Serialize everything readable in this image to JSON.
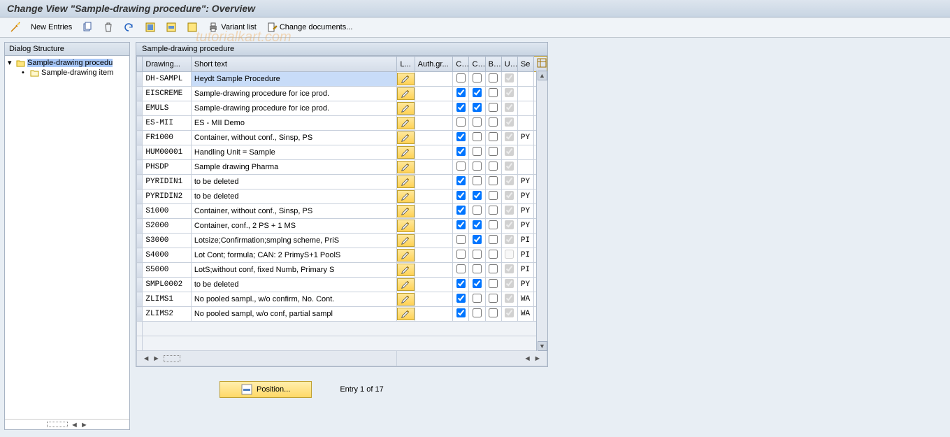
{
  "title": "Change View \"Sample-drawing procedure\": Overview",
  "toolbar": {
    "new_entries": "New Entries",
    "variant_list": "Variant list",
    "change_documents": "Change documents..."
  },
  "watermark": "tutorialkart.com",
  "tree": {
    "header": "Dialog Structure",
    "node1": "Sample-drawing procedu",
    "node2": "Sample-drawing item"
  },
  "grid": {
    "title": "Sample-drawing procedure",
    "headers": {
      "drawing": "Drawing...",
      "short_text": "Short text",
      "l": "L...",
      "authgr": "Auth.gr...",
      "c1": "C...",
      "c2": "C...",
      "bl": "Bl...",
      "u": "U...",
      "se": "Se"
    },
    "rows": [
      {
        "code": "DH-SAMPL",
        "text": "Heydt Sample Procedure",
        "c1": false,
        "c2": false,
        "bl": false,
        "u": true,
        "se": "",
        "sel": true
      },
      {
        "code": "EISCREME",
        "text": "Sample-drawing procedure for ice prod.",
        "c1": true,
        "c2": true,
        "bl": false,
        "u": true,
        "se": ""
      },
      {
        "code": "EMULS",
        "text": "Sample-drawing procedure for ice prod.",
        "c1": true,
        "c2": true,
        "bl": false,
        "u": true,
        "se": ""
      },
      {
        "code": "ES-MII",
        "text": "ES - MII Demo",
        "c1": false,
        "c2": false,
        "bl": false,
        "u": true,
        "se": ""
      },
      {
        "code": "FR1000",
        "text": "Container, without conf., Sinsp, PS",
        "c1": true,
        "c2": false,
        "bl": false,
        "u": true,
        "se": "PY"
      },
      {
        "code": "HUM00001",
        "text": "Handling Unit = Sample",
        "c1": true,
        "c2": false,
        "bl": false,
        "u": true,
        "se": ""
      },
      {
        "code": "PHSDP",
        "text": "Sample drawing Pharma",
        "c1": false,
        "c2": false,
        "bl": false,
        "u": true,
        "se": ""
      },
      {
        "code": "PYRIDIN1",
        "text": "to be deleted",
        "c1": true,
        "c2": false,
        "bl": false,
        "u": true,
        "se": "PY"
      },
      {
        "code": "PYRIDIN2",
        "text": "to be deleted",
        "c1": true,
        "c2": true,
        "bl": false,
        "u": true,
        "se": "PY"
      },
      {
        "code": "S1000",
        "text": "Container, without conf., Sinsp, PS",
        "c1": true,
        "c2": false,
        "bl": false,
        "u": true,
        "se": "PY"
      },
      {
        "code": "S2000",
        "text": "Container, conf., 2 PS + 1 MS",
        "c1": true,
        "c2": true,
        "bl": false,
        "u": true,
        "se": "PY"
      },
      {
        "code": "S3000",
        "text": "Lotsize;Confirmation;smplng scheme, PriS",
        "c1": false,
        "c2": true,
        "bl": false,
        "u": true,
        "se": "PI"
      },
      {
        "code": "S4000",
        "text": "Lot Cont; formula; CAN: 2 PrimyS+1 PoolS",
        "c1": false,
        "c2": false,
        "bl": false,
        "u": false,
        "se": "PI"
      },
      {
        "code": "S5000",
        "text": "LotS;without conf, fixed Numb, Primary S",
        "c1": false,
        "c2": false,
        "bl": false,
        "u": true,
        "se": "PI"
      },
      {
        "code": "SMPL0002",
        "text": "to be deleted",
        "c1": true,
        "c2": true,
        "bl": false,
        "u": true,
        "se": "PY"
      },
      {
        "code": "ZLIMS1",
        "text": "No pooled sampl., w/o confirm, No. Cont.",
        "c1": true,
        "c2": false,
        "bl": false,
        "u": true,
        "se": "WA"
      },
      {
        "code": "ZLIMS2",
        "text": "No pooled sampl, w/o conf, partial sampl",
        "c1": true,
        "c2": false,
        "bl": false,
        "u": true,
        "se": "WA"
      }
    ]
  },
  "footer": {
    "position": "Position...",
    "entry": "Entry 1 of 17"
  },
  "colors": {
    "headerbg": "#dde5ee",
    "accent": "#ffd966",
    "border": "#a8b4c4"
  }
}
